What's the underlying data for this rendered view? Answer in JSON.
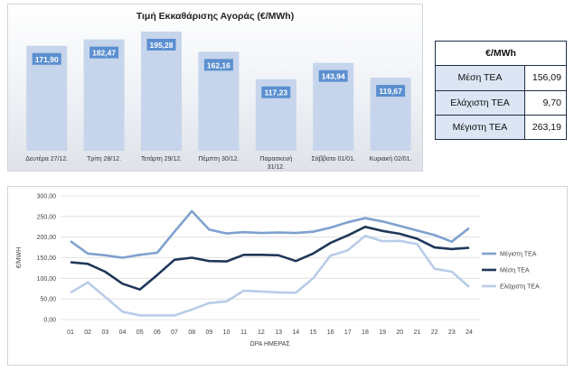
{
  "chart_data": [
    {
      "type": "bar",
      "title": "Τιμή Εκκαθάρισης Αγοράς (€/MWh)",
      "categories": [
        [
          "Δευτέρα 27/12."
        ],
        [
          "Τρίτη 28/12."
        ],
        [
          "Τετάρτη 29/12."
        ],
        [
          "Πέμπτη 30/12."
        ],
        [
          "Παρασκευή",
          "31/12."
        ],
        [
          "Σάββατο 01/01."
        ],
        [
          "Κυριακή 02/01."
        ]
      ],
      "values": [
        171.9,
        182.47,
        195.28,
        162.16,
        117.23,
        143.94,
        119.67
      ],
      "value_labels": [
        "171,90",
        "182,47",
        "195,28",
        "162,16",
        "117,23",
        "143,94",
        "119,67"
      ],
      "ylim": [
        0,
        210
      ],
      "grid": false,
      "colors": {
        "bar": "#c6d5ec",
        "label_bg": "#5b8fd0",
        "label_text": "#ffffff"
      }
    },
    {
      "type": "line",
      "xlabel": "ΩΡΑ ΗΜΕΡΑΣ",
      "ylabel": "€/MWH",
      "x": [
        "01",
        "02",
        "03",
        "04",
        "05",
        "06",
        "07",
        "08",
        "09",
        "10",
        "11",
        "12",
        "13",
        "14",
        "15",
        "16",
        "17",
        "18",
        "19",
        "20",
        "21",
        "22",
        "23",
        "24"
      ],
      "ylim": [
        0,
        300
      ],
      "yticks": [
        "0,00",
        "50,00",
        "100,00",
        "150,00",
        "200,00",
        "250,00",
        "300,00"
      ],
      "grid": true,
      "legend_position": "right",
      "series": [
        {
          "name": "Μέγιστη ΤΕΑ",
          "color": "#7fa1cf",
          "values": [
            190,
            160,
            156,
            150,
            157,
            162,
            213,
            263,
            218,
            209,
            212,
            210,
            211,
            210,
            213,
            223,
            236,
            246,
            238,
            227,
            216,
            205,
            189,
            222
          ]
        },
        {
          "name": "Μέση ΤΕΑ",
          "color": "#1f3759",
          "values": [
            139,
            135,
            116,
            87,
            73,
            108,
            145,
            150,
            142,
            141,
            157,
            157,
            156,
            142,
            160,
            186,
            204,
            225,
            215,
            208,
            196,
            175,
            171,
            174
          ]
        },
        {
          "name": "Ελάχιστη ΤΕΑ",
          "color": "#b9cce8",
          "values": [
            65,
            90,
            55,
            19,
            10,
            10,
            10,
            24,
            40,
            44,
            70,
            68,
            66,
            65,
            100,
            155,
            168,
            203,
            190,
            191,
            183,
            123,
            116,
            79
          ]
        }
      ]
    }
  ],
  "stats_table": {
    "header": "€/MWh",
    "rows": [
      {
        "label": "Μέση ΤΕΑ",
        "value": "156,09"
      },
      {
        "label": "Ελάχιστη ΤΕΑ",
        "value": "9,70"
      },
      {
        "label": "Μέγιστη ΤΕΑ",
        "value": "263,19"
      }
    ]
  }
}
